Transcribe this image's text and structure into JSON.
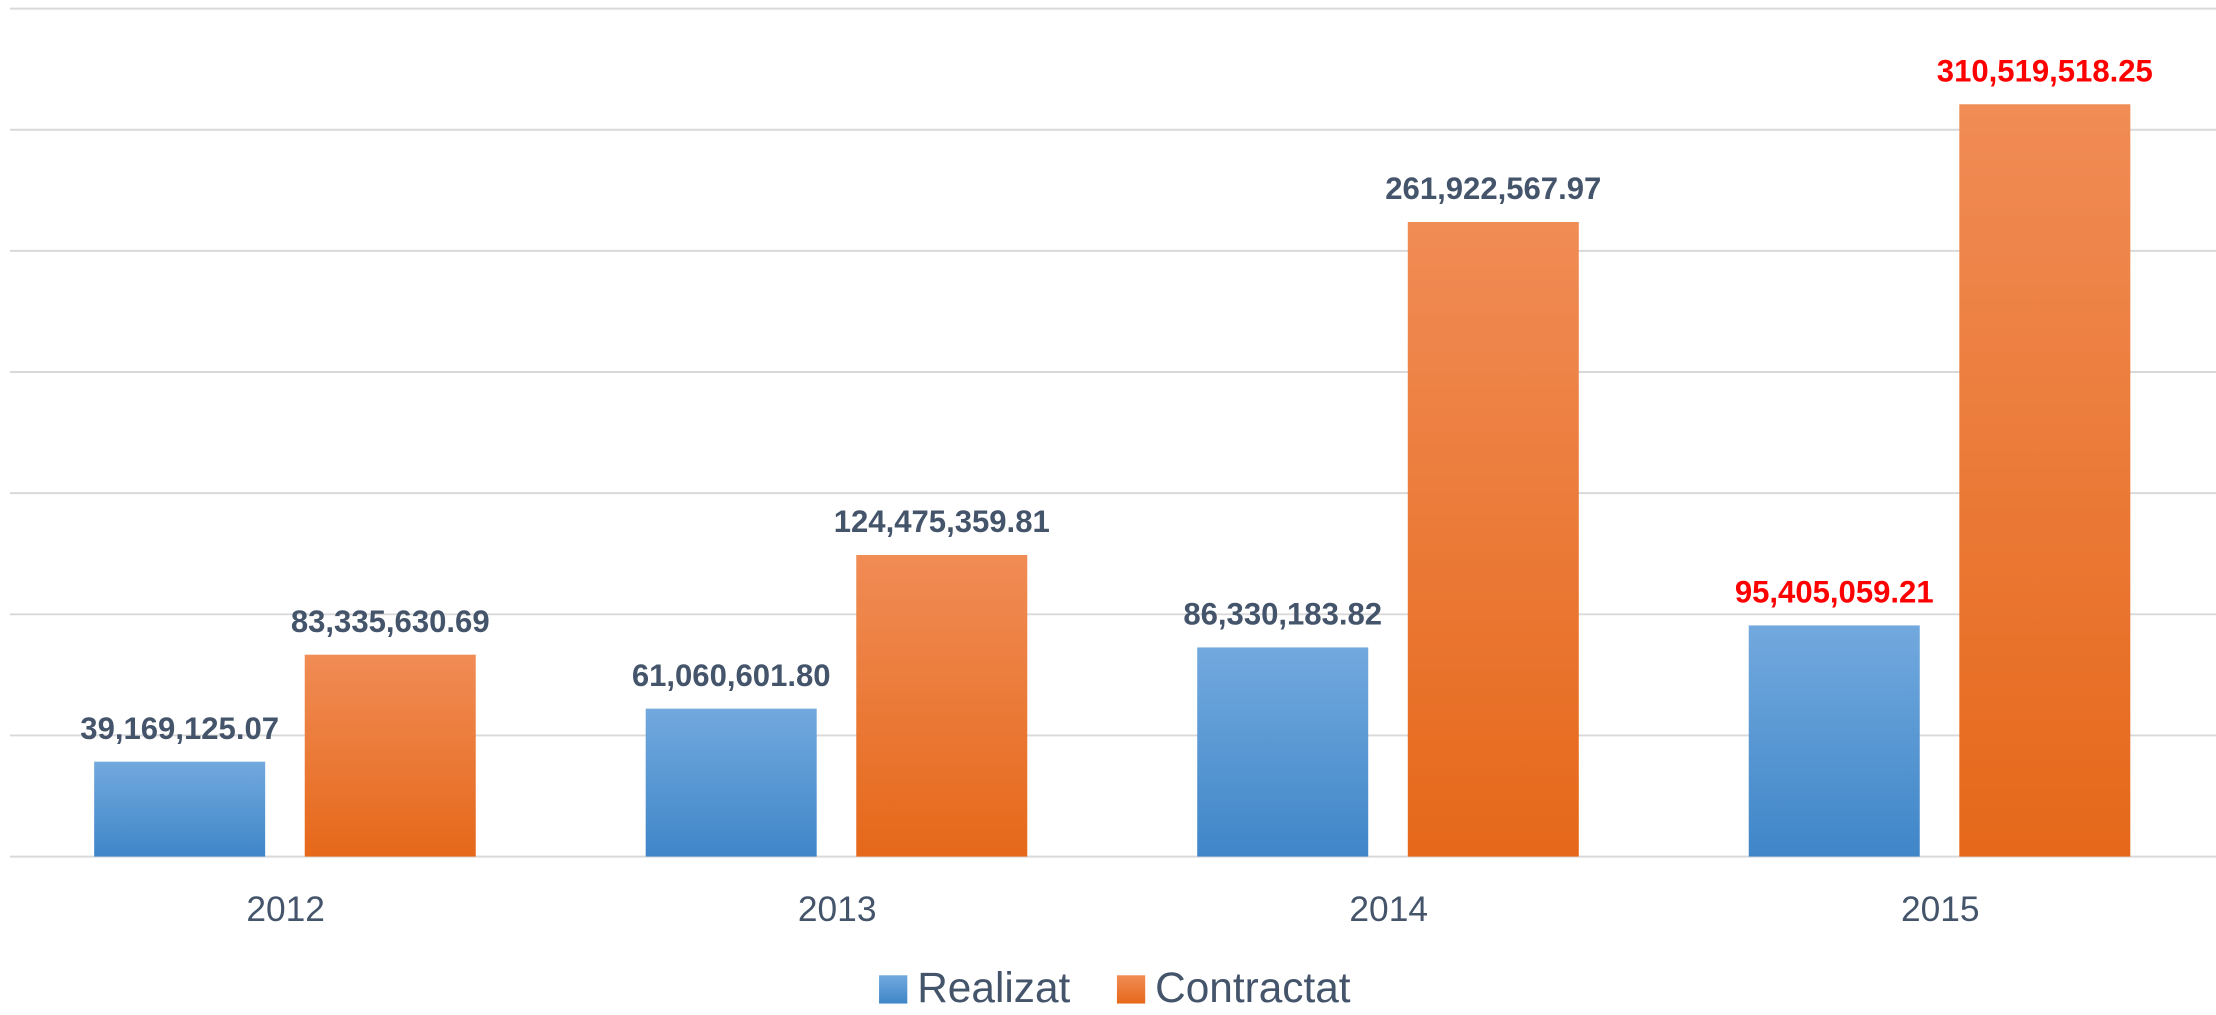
{
  "chart_data": {
    "type": "bar",
    "categories": [
      "2012",
      "2013",
      "2014",
      "2015"
    ],
    "series": [
      {
        "name": "Realizat",
        "color": "#4a8fd3",
        "values": [
          39169125.07,
          61060601.8,
          86330183.82,
          95405059.21
        ],
        "value_labels": [
          "39,169,125.07",
          "61,060,601.80",
          "86,330,183.82",
          "95,405,059.21"
        ],
        "label_colors": [
          "#44546a",
          "#44546a",
          "#44546a",
          "#ff0000"
        ]
      },
      {
        "name": "Contractat",
        "color": "#ee7a2e",
        "values": [
          83335630.69,
          124475359.81,
          261922567.97,
          310519518.25
        ],
        "value_labels": [
          "83,335,630.69",
          "124,475,359.81",
          "261,922,567.97",
          "310,519,518.25"
        ],
        "label_colors": [
          "#44546a",
          "#44546a",
          "#44546a",
          "#ff0000"
        ]
      }
    ],
    "ylim": [
      0,
      350000000
    ],
    "yticks": [
      0,
      50000000,
      100000000,
      150000000,
      200000000,
      250000000,
      300000000,
      350000000
    ],
    "grid": true,
    "legend": "bottom"
  }
}
